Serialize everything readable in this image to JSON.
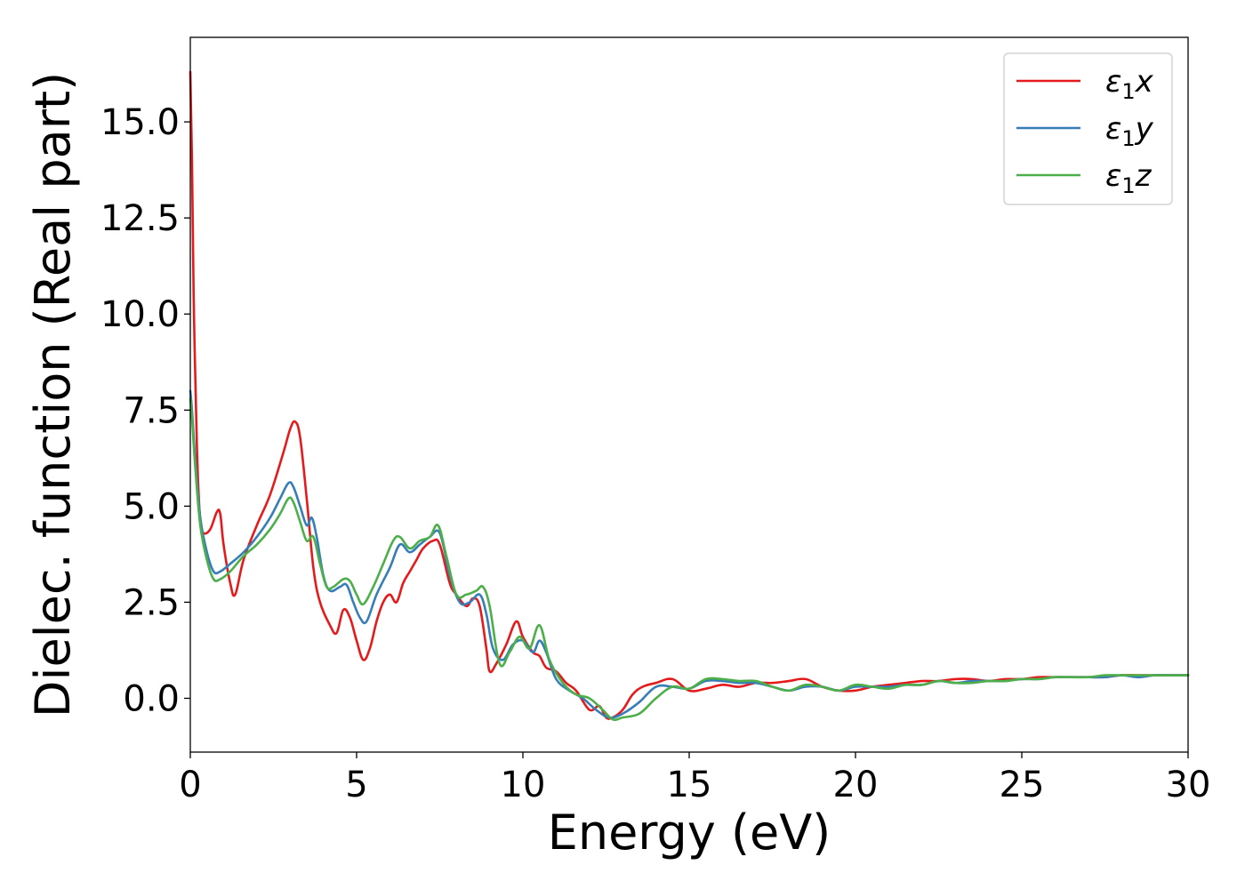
{
  "chart_data": {
    "type": "line",
    "title": "",
    "xlabel": "Energy (eV)",
    "ylabel": "Dielec. function (Real part)",
    "xlim": [
      0,
      30
    ],
    "ylim": [
      -1.4,
      17.2
    ],
    "xticks": [
      0,
      5,
      10,
      15,
      20,
      25,
      30
    ],
    "xtick_labels": [
      "0",
      "5",
      "10",
      "15",
      "20",
      "25",
      "30"
    ],
    "yticks": [
      0.0,
      2.5,
      5.0,
      7.5,
      10.0,
      12.5,
      15.0
    ],
    "ytick_labels": [
      "0.0",
      "2.5",
      "5.0",
      "7.5",
      "10.0",
      "12.5",
      "15.0"
    ],
    "grid": false,
    "legend_position": "top-right",
    "series": [
      {
        "name": "ε1x",
        "legend_main": "ε",
        "legend_sub": "1",
        "legend_var": "x",
        "color": "#e41a1c",
        "x": [
          0,
          0.05,
          0.1,
          0.2,
          0.3,
          0.4,
          0.6,
          0.8,
          0.9,
          1.0,
          1.2,
          1.35,
          1.6,
          2.0,
          2.4,
          2.8,
          3.0,
          3.15,
          3.3,
          3.5,
          3.7,
          3.9,
          4.2,
          4.4,
          4.6,
          4.8,
          5.0,
          5.2,
          5.4,
          5.6,
          5.8,
          6.0,
          6.2,
          6.4,
          6.6,
          6.8,
          7.0,
          7.3,
          7.5,
          7.8,
          8.0,
          8.3,
          8.5,
          8.7,
          8.9,
          9.0,
          9.2,
          9.5,
          9.8,
          10.0,
          10.3,
          10.5,
          10.7,
          11.0,
          11.3,
          11.6,
          12.0,
          12.3,
          12.5,
          12.7,
          13.0,
          13.3,
          13.6,
          14.0,
          14.5,
          15.0,
          15.5,
          16.0,
          16.5,
          17.0,
          17.5,
          18.0,
          18.5,
          19.0,
          19.5,
          20.0,
          20.5,
          21.0,
          21.5,
          22.0,
          22.5,
          23.0,
          23.5,
          24.0,
          24.5,
          25.0,
          25.5,
          26.0,
          26.5,
          27.0,
          27.5,
          28.0,
          28.5,
          29.0,
          29.5,
          30.0
        ],
        "y": [
          16.3,
          14.0,
          10.5,
          6.5,
          4.6,
          4.3,
          4.4,
          4.85,
          4.8,
          4.0,
          3.0,
          2.7,
          3.6,
          4.5,
          5.3,
          6.4,
          7.0,
          7.2,
          6.8,
          5.2,
          3.4,
          2.5,
          1.9,
          1.7,
          2.3,
          2.1,
          1.5,
          1.0,
          1.3,
          2.0,
          2.5,
          2.7,
          2.5,
          3.0,
          3.3,
          3.6,
          3.9,
          4.1,
          4.0,
          3.0,
          2.7,
          2.4,
          2.6,
          2.4,
          1.3,
          0.7,
          0.9,
          1.4,
          2.0,
          1.6,
          1.2,
          1.1,
          0.8,
          0.7,
          0.4,
          0.2,
          -0.3,
          -0.2,
          -0.5,
          -0.5,
          -0.3,
          0.1,
          0.3,
          0.4,
          0.5,
          0.2,
          0.25,
          0.35,
          0.3,
          0.4,
          0.4,
          0.45,
          0.5,
          0.3,
          0.2,
          0.2,
          0.3,
          0.35,
          0.4,
          0.45,
          0.45,
          0.5,
          0.5,
          0.45,
          0.5,
          0.5,
          0.55,
          0.55,
          0.55,
          0.55,
          0.55,
          0.6,
          0.6,
          0.6,
          0.6,
          0.6
        ]
      },
      {
        "name": "ε1y",
        "legend_main": "ε",
        "legend_sub": "1",
        "legend_var": "y",
        "color": "#377eb8",
        "x": [
          0,
          0.05,
          0.15,
          0.3,
          0.5,
          0.7,
          0.9,
          1.2,
          1.6,
          2.0,
          2.4,
          2.7,
          2.95,
          3.1,
          3.3,
          3.5,
          3.65,
          3.8,
          4.0,
          4.2,
          4.5,
          4.7,
          4.9,
          5.1,
          5.3,
          5.6,
          6.0,
          6.3,
          6.6,
          6.9,
          7.2,
          7.5,
          7.8,
          8.1,
          8.4,
          8.7,
          8.9,
          9.1,
          9.4,
          9.7,
          10.0,
          10.3,
          10.5,
          10.7,
          11.0,
          11.4,
          11.8,
          12.2,
          12.6,
          13.0,
          13.5,
          14.0,
          14.5,
          15.0,
          15.5,
          16.0,
          16.5,
          17.0,
          17.5,
          18.0,
          18.5,
          19.0,
          19.5,
          20.0,
          20.5,
          21.0,
          21.5,
          22.0,
          22.5,
          23.0,
          23.5,
          24.0,
          24.5,
          25.0,
          25.5,
          26.0,
          26.5,
          27.0,
          27.5,
          28.0,
          28.5,
          29.0,
          29.5,
          30.0
        ],
        "y": [
          8.0,
          7.5,
          6.2,
          4.7,
          3.8,
          3.3,
          3.3,
          3.5,
          3.8,
          4.2,
          4.7,
          5.2,
          5.6,
          5.5,
          5.0,
          4.5,
          4.7,
          4.2,
          3.2,
          2.8,
          2.9,
          2.95,
          2.5,
          2.1,
          2.0,
          2.7,
          3.4,
          4.0,
          3.8,
          4.0,
          4.2,
          4.3,
          3.2,
          2.5,
          2.5,
          2.7,
          2.2,
          1.3,
          1.0,
          1.4,
          1.5,
          1.2,
          1.5,
          1.2,
          0.5,
          0.2,
          0.0,
          -0.3,
          -0.5,
          -0.4,
          -0.1,
          0.3,
          0.3,
          0.25,
          0.45,
          0.45,
          0.4,
          0.4,
          0.3,
          0.2,
          0.3,
          0.3,
          0.2,
          0.3,
          0.3,
          0.3,
          0.35,
          0.35,
          0.45,
          0.4,
          0.45,
          0.45,
          0.45,
          0.5,
          0.5,
          0.55,
          0.55,
          0.55,
          0.55,
          0.6,
          0.55,
          0.6,
          0.6,
          0.6
        ]
      },
      {
        "name": "ε1z",
        "legend_main": "ε",
        "legend_sub": "1",
        "legend_var": "z",
        "color": "#4daf4a",
        "x": [
          0,
          0.05,
          0.15,
          0.3,
          0.5,
          0.7,
          0.9,
          1.2,
          1.6,
          2.0,
          2.4,
          2.7,
          2.95,
          3.1,
          3.3,
          3.5,
          3.7,
          3.9,
          4.1,
          4.3,
          4.6,
          4.8,
          5.0,
          5.2,
          5.5,
          5.8,
          6.1,
          6.3,
          6.6,
          6.9,
          7.2,
          7.45,
          7.7,
          8.0,
          8.3,
          8.6,
          8.8,
          9.0,
          9.3,
          9.6,
          9.9,
          10.2,
          10.5,
          10.8,
          11.2,
          11.6,
          12.0,
          12.4,
          12.7,
          13.0,
          13.5,
          14.0,
          14.5,
          15.0,
          15.5,
          16.0,
          16.5,
          17.0,
          17.5,
          18.0,
          18.5,
          19.0,
          19.5,
          20.0,
          20.5,
          21.0,
          21.5,
          22.0,
          22.5,
          23.0,
          23.5,
          24.0,
          24.5,
          25.0,
          25.5,
          26.0,
          26.5,
          27.0,
          27.5,
          28.0,
          28.5,
          29.0,
          29.5,
          30.0
        ],
        "y": [
          7.8,
          7.3,
          6.0,
          4.5,
          3.6,
          3.1,
          3.1,
          3.3,
          3.7,
          4.0,
          4.4,
          4.8,
          5.2,
          5.1,
          4.6,
          4.1,
          4.2,
          3.5,
          2.9,
          2.9,
          3.1,
          3.05,
          2.7,
          2.45,
          2.9,
          3.5,
          4.1,
          4.2,
          3.9,
          4.1,
          4.2,
          4.5,
          3.7,
          2.7,
          2.7,
          2.8,
          2.9,
          2.4,
          0.9,
          1.2,
          1.6,
          1.3,
          1.9,
          1.0,
          0.4,
          0.1,
          0.0,
          -0.3,
          -0.55,
          -0.5,
          -0.4,
          0.0,
          0.3,
          0.25,
          0.5,
          0.5,
          0.45,
          0.45,
          0.3,
          0.2,
          0.35,
          0.3,
          0.2,
          0.35,
          0.3,
          0.25,
          0.35,
          0.35,
          0.45,
          0.4,
          0.4,
          0.45,
          0.45,
          0.5,
          0.5,
          0.55,
          0.55,
          0.55,
          0.6,
          0.6,
          0.6,
          0.6,
          0.6,
          0.6
        ]
      }
    ]
  }
}
